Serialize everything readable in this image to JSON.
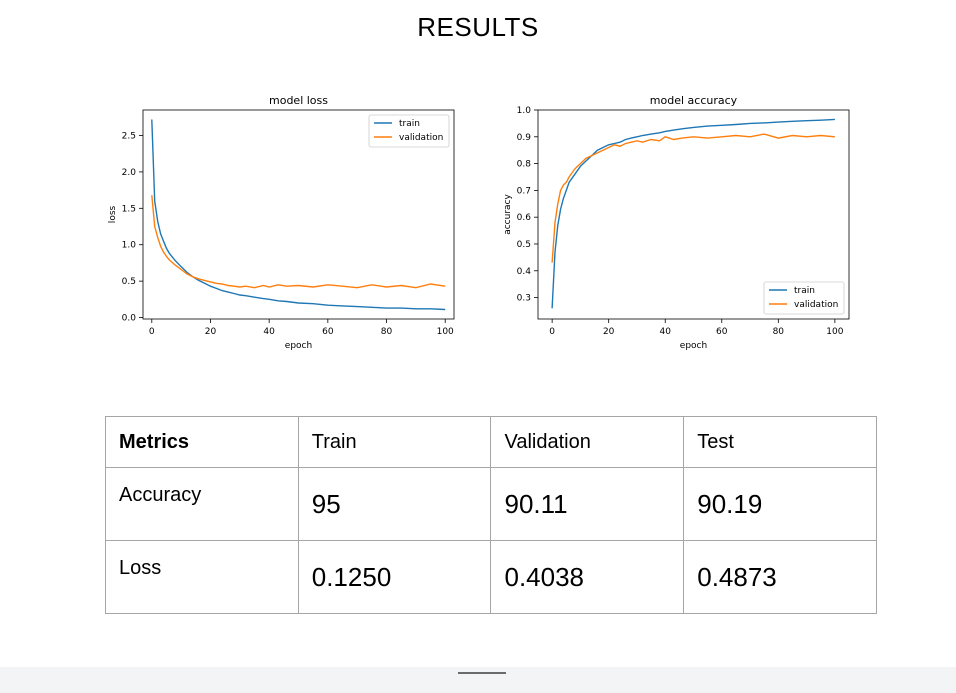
{
  "page": {
    "title": "RESULTS"
  },
  "colors": {
    "train": "#1f77b4",
    "validation": "#ff7f0e",
    "table_border": "#a6a6a6"
  },
  "chart_data": [
    {
      "type": "line",
      "title": "model loss",
      "xlabel": "epoch",
      "ylabel": "loss",
      "xlim": [
        -3,
        103
      ],
      "ylim": [
        -0.02,
        2.85
      ],
      "xticks": [
        0,
        20,
        40,
        60,
        80,
        100
      ],
      "yticks": [
        0.0,
        0.5,
        1.0,
        1.5,
        2.0,
        2.5
      ],
      "ytick_labels": [
        "0.0",
        "0.5",
        "1.0",
        "1.5",
        "2.0",
        "2.5"
      ],
      "legend_position": "top-right",
      "grid": false,
      "series": [
        {
          "name": "train",
          "x": [
            0,
            1,
            2,
            3,
            4,
            5,
            6,
            8,
            10,
            12,
            14,
            16,
            18,
            20,
            22,
            24,
            26,
            28,
            30,
            32,
            35,
            38,
            40,
            43,
            46,
            50,
            55,
            60,
            65,
            70,
            75,
            80,
            85,
            90,
            95,
            100
          ],
          "y": [
            2.72,
            1.6,
            1.32,
            1.15,
            1.05,
            0.95,
            0.88,
            0.78,
            0.7,
            0.62,
            0.56,
            0.51,
            0.47,
            0.43,
            0.4,
            0.37,
            0.35,
            0.33,
            0.31,
            0.3,
            0.28,
            0.26,
            0.25,
            0.23,
            0.22,
            0.2,
            0.19,
            0.17,
            0.16,
            0.15,
            0.14,
            0.13,
            0.13,
            0.12,
            0.12,
            0.11
          ]
        },
        {
          "name": "validation",
          "x": [
            0,
            1,
            2,
            3,
            4,
            5,
            6,
            8,
            10,
            12,
            14,
            16,
            18,
            20,
            22,
            24,
            26,
            28,
            30,
            32,
            35,
            38,
            40,
            43,
            46,
            50,
            55,
            60,
            65,
            70,
            75,
            80,
            85,
            90,
            95,
            100
          ],
          "y": [
            1.68,
            1.25,
            1.1,
            0.98,
            0.9,
            0.84,
            0.79,
            0.72,
            0.66,
            0.6,
            0.56,
            0.53,
            0.51,
            0.49,
            0.47,
            0.46,
            0.44,
            0.43,
            0.42,
            0.43,
            0.41,
            0.44,
            0.42,
            0.45,
            0.43,
            0.44,
            0.42,
            0.45,
            0.43,
            0.41,
            0.45,
            0.42,
            0.44,
            0.41,
            0.46,
            0.43
          ]
        }
      ]
    },
    {
      "type": "line",
      "title": "model accuracy",
      "xlabel": "epoch",
      "ylabel": "accuracy",
      "xlim": [
        -5,
        105
      ],
      "ylim": [
        0.22,
        1.0
      ],
      "xticks": [
        0,
        20,
        40,
        60,
        80,
        100
      ],
      "yticks": [
        0.3,
        0.4,
        0.5,
        0.6,
        0.7,
        0.8,
        0.9,
        1.0
      ],
      "ytick_labels": [
        "0.3",
        "0.4",
        "0.5",
        "0.6",
        "0.7",
        "0.8",
        "0.9",
        "1.0"
      ],
      "legend_position": "bottom-right",
      "grid": false,
      "series": [
        {
          "name": "train",
          "x": [
            0,
            1,
            2,
            3,
            4,
            5,
            6,
            8,
            10,
            12,
            14,
            16,
            18,
            20,
            22,
            24,
            26,
            28,
            30,
            32,
            35,
            38,
            40,
            43,
            46,
            50,
            55,
            60,
            65,
            70,
            75,
            80,
            85,
            90,
            95,
            100
          ],
          "y": [
            0.26,
            0.47,
            0.57,
            0.63,
            0.67,
            0.7,
            0.73,
            0.76,
            0.79,
            0.81,
            0.83,
            0.85,
            0.86,
            0.87,
            0.875,
            0.88,
            0.89,
            0.895,
            0.9,
            0.905,
            0.91,
            0.915,
            0.92,
            0.925,
            0.93,
            0.935,
            0.94,
            0.943,
            0.946,
            0.95,
            0.952,
            0.955,
            0.958,
            0.96,
            0.962,
            0.965
          ]
        },
        {
          "name": "validation",
          "x": [
            0,
            1,
            2,
            3,
            4,
            5,
            6,
            8,
            10,
            12,
            14,
            16,
            18,
            20,
            22,
            24,
            26,
            28,
            30,
            32,
            35,
            38,
            40,
            43,
            46,
            50,
            55,
            60,
            65,
            70,
            75,
            80,
            85,
            90,
            95,
            100
          ],
          "y": [
            0.43,
            0.58,
            0.65,
            0.7,
            0.72,
            0.73,
            0.75,
            0.78,
            0.8,
            0.82,
            0.83,
            0.84,
            0.85,
            0.86,
            0.87,
            0.865,
            0.875,
            0.88,
            0.885,
            0.88,
            0.89,
            0.885,
            0.9,
            0.89,
            0.895,
            0.9,
            0.895,
            0.9,
            0.905,
            0.9,
            0.91,
            0.895,
            0.905,
            0.9,
            0.905,
            0.9
          ]
        }
      ]
    }
  ],
  "table": {
    "headers": [
      "Metrics",
      "Train",
      "Validation",
      "Test"
    ],
    "rows": [
      [
        "Accuracy",
        "95",
        "90.11",
        "90.19"
      ],
      [
        "Loss",
        "0.1250",
        "0.4038",
        "0.4873"
      ]
    ]
  }
}
